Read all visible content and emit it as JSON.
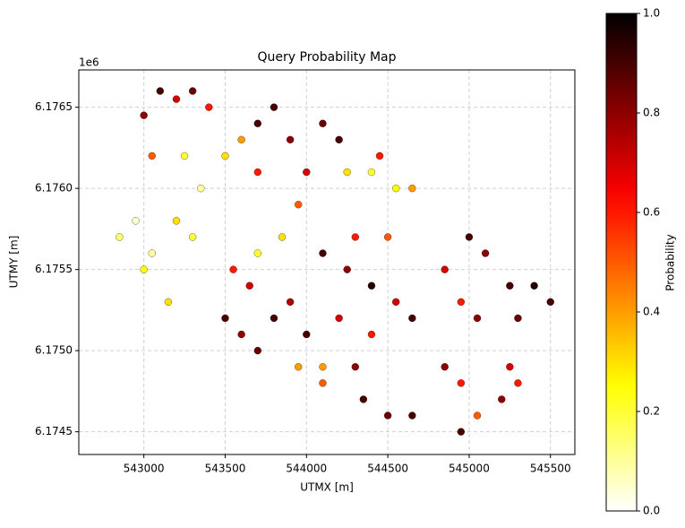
{
  "chart_data": {
    "type": "scatter",
    "title": "Query Probability Map",
    "xlabel": "UTMX [m]",
    "ylabel": "UTMY [m]",
    "y_offset_text": "1e6",
    "colorbar_label": "Probability",
    "colormap": "hot_r",
    "grid": true,
    "xlim": [
      542600,
      545650
    ],
    "xticks": [
      543000,
      543500,
      544000,
      544500,
      545000,
      545500
    ],
    "ylim": [
      6.17436,
      6.17673
    ],
    "yticks": [
      6.1745,
      {
        "value": 6.175,
        "label": "6.1750"
      },
      6.1755,
      {
        "value": 6.176,
        "label": "6.1760"
      },
      6.1765
    ],
    "clim": [
      0,
      1
    ],
    "cticks": [
      {
        "value": 0,
        "label": "0.0"
      },
      0.2,
      0.4,
      0.6,
      0.8,
      {
        "value": 1,
        "label": "1.0"
      }
    ],
    "x": [
      543000,
      543100,
      543200,
      543300,
      543400,
      543050,
      543250,
      543350,
      543500,
      543600,
      543700,
      543700,
      542850,
      542950,
      543050,
      543200,
      543300,
      543000,
      543150,
      543800,
      543900,
      544000,
      543950,
      544100,
      544200,
      544250,
      544400,
      544550,
      544650,
      544450,
      543550,
      543700,
      543850,
      543650,
      543500,
      543600,
      543700,
      543800,
      543900,
      544100,
      544250,
      544400,
      544550,
      544650,
      544300,
      544500,
      544200,
      544400,
      544000,
      544100,
      544300,
      544350,
      544500,
      544650,
      544850,
      545000,
      545100,
      545250,
      545400,
      545500,
      545300,
      544950,
      545050,
      544850,
      544950,
      545050,
      544950,
      545250,
      545300,
      545200,
      544100,
      543950
    ],
    "y": [
      6.17645,
      6.1766,
      6.17655,
      6.1766,
      6.1765,
      6.1762,
      6.1762,
      6.176,
      6.1762,
      6.1763,
      6.1764,
      6.1761,
      6.1757,
      6.1758,
      6.1756,
      6.1758,
      6.1757,
      6.1755,
      6.1753,
      6.1765,
      6.1763,
      6.1761,
      6.1759,
      6.1764,
      6.1763,
      6.1761,
      6.1761,
      6.176,
      6.176,
      6.1762,
      6.1755,
      6.1756,
      6.1757,
      6.1754,
      6.1752,
      6.1751,
      6.175,
      6.1752,
      6.1753,
      6.1756,
      6.1755,
      6.1754,
      6.1753,
      6.1752,
      6.1757,
      6.1757,
      6.1752,
      6.1751,
      6.1751,
      6.1749,
      6.1749,
      6.1747,
      6.1746,
      6.1746,
      6.1755,
      6.1757,
      6.1756,
      6.1754,
      6.1754,
      6.1753,
      6.1752,
      6.1753,
      6.1752,
      6.1749,
      6.1748,
      6.1746,
      6.1745,
      6.1749,
      6.1748,
      6.1747,
      6.1748,
      6.1749
    ],
    "values": [
      0.8,
      0.9,
      0.7,
      0.85,
      0.6,
      0.5,
      0.2,
      0.1,
      0.3,
      0.4,
      0.9,
      0.6,
      0.15,
      0.05,
      0.1,
      0.3,
      0.2,
      0.25,
      0.3,
      0.9,
      0.8,
      0.7,
      0.5,
      0.85,
      0.9,
      0.3,
      0.2,
      0.25,
      0.4,
      0.6,
      0.6,
      0.2,
      0.3,
      0.7,
      0.9,
      0.8,
      0.85,
      0.9,
      0.75,
      0.9,
      0.8,
      0.95,
      0.7,
      0.9,
      0.6,
      0.5,
      0.7,
      0.6,
      0.9,
      0.4,
      0.8,
      0.9,
      0.85,
      0.9,
      0.7,
      0.9,
      0.8,
      0.9,
      0.95,
      0.9,
      0.85,
      0.6,
      0.8,
      0.8,
      0.6,
      0.5,
      0.9,
      0.7,
      0.6,
      0.8,
      0.5,
      0.4
    ]
  }
}
